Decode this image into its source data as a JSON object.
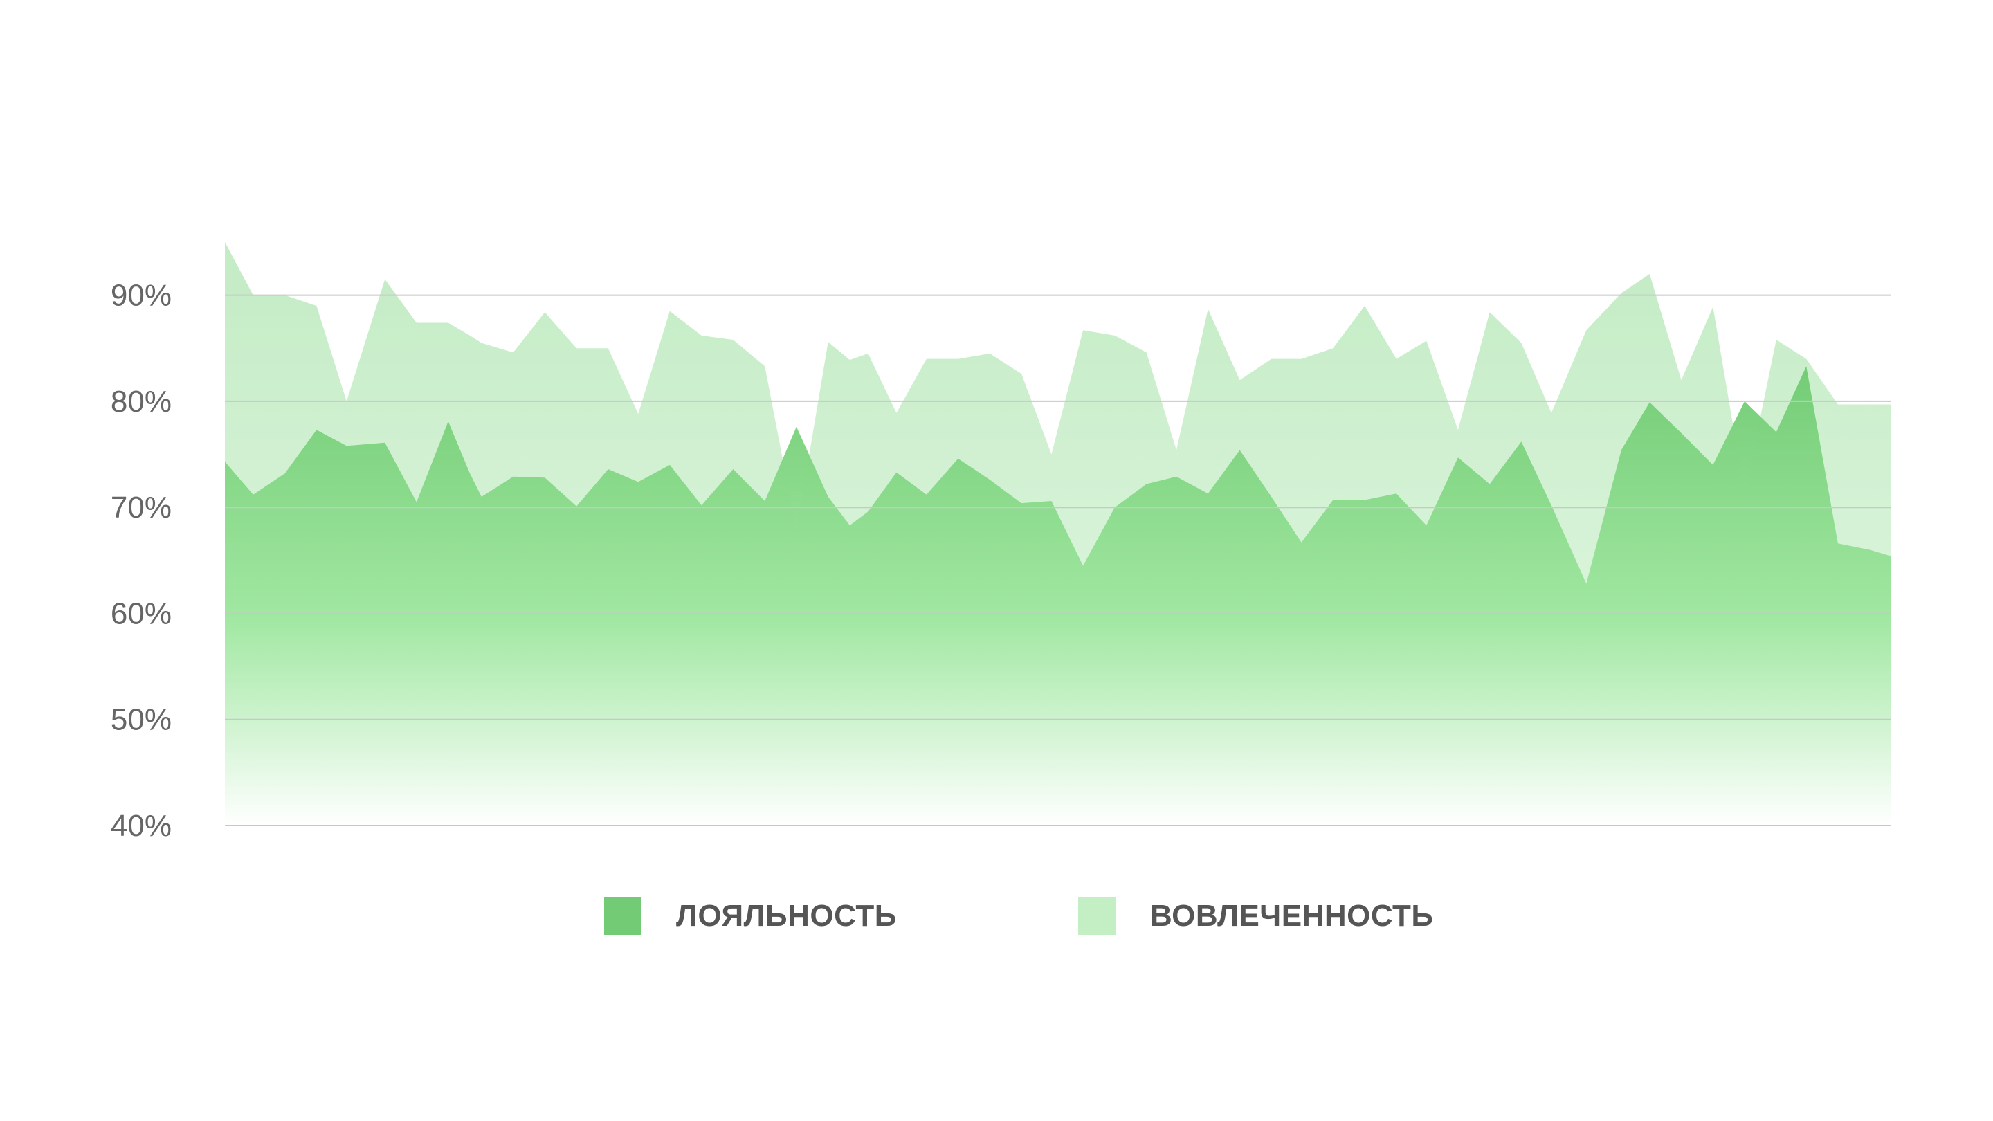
{
  "chart_data": {
    "type": "area",
    "title": "",
    "xlabel": "",
    "ylabel": "",
    "ylim": [
      40,
      95
    ],
    "yticks": [
      "40%",
      "50%",
      "60%",
      "70%",
      "80%",
      "90%"
    ],
    "ytick_values": [
      40,
      50,
      60,
      70,
      80,
      90
    ],
    "grid": true,
    "legend_position": "bottom-center",
    "x": [
      0,
      1.7,
      3.6,
      5.5,
      7.3,
      9.6,
      11.5,
      13.4,
      14.7,
      15.4,
      17.3,
      19.2,
      21.1,
      23.0,
      24.8,
      26.7,
      28.6,
      30.5,
      32.4,
      34.3,
      36.2,
      37.5,
      38.6,
      40.3,
      42.1,
      44.0,
      45.9,
      47.8,
      49.6,
      51.5,
      53.4,
      55.3,
      57.1,
      59.0,
      60.9,
      62.8,
      64.6,
      66.5,
      68.4,
      70.3,
      72.1,
      74.0,
      75.9,
      77.8,
      79.6,
      81.7,
      83.8,
      85.5,
      87.4,
      89.3,
      91.2,
      93.1,
      94.9,
      96.8,
      98.7,
      100
    ],
    "series": [
      {
        "name": "ЛОЯЛЬНОСТЬ",
        "color": "#73cc75",
        "values": [
          74.3,
          71.2,
          73.2,
          77.3,
          75.8,
          76.1,
          70.5,
          78.1,
          73.2,
          71.0,
          72.9,
          72.8,
          70.1,
          73.6,
          72.4,
          74.0,
          70.2,
          73.6,
          70.6,
          77.6,
          71.0,
          68.3,
          69.6,
          73.3,
          71.2,
          74.6,
          72.6,
          70.4,
          70.6,
          64.5,
          70.0,
          72.2,
          72.9,
          71.3,
          75.4,
          71.0,
          66.7,
          70.7,
          70.7,
          71.3,
          68.3,
          74.7,
          72.2,
          76.2,
          70.2,
          62.8,
          75.4,
          79.9,
          77.0,
          74.0,
          80.0,
          77.1,
          83.3,
          66.6,
          66.0,
          65.4
        ],
        "fill_gradient": [
          "#73cc75",
          "#ffffff"
        ]
      },
      {
        "name": "ВОВЛЕЧЕННОСТЬ",
        "color": "#c4efc5",
        "values": [
          95.0,
          90.0,
          90.0,
          89.0,
          80.0,
          91.5,
          87.4,
          87.4,
          86.2,
          85.5,
          84.6,
          88.4,
          85.0,
          85.0,
          78.8,
          88.5,
          86.2,
          85.8,
          83.3,
          67.8,
          85.6,
          83.9,
          84.5,
          78.9,
          84.0,
          84.0,
          84.5,
          82.6,
          75.0,
          86.7,
          86.2,
          84.6,
          75.4,
          88.7,
          82.0,
          84.0,
          84.0,
          85.0,
          89.0,
          84.0,
          85.7,
          77.3,
          88.4,
          85.5,
          78.9,
          86.7,
          90.2,
          92.0,
          82.0,
          88.9,
          71.3,
          85.8,
          84.0,
          79.7,
          79.7,
          79.7
        ],
        "fill_gradient": [
          "#a9e3ab",
          "#dff7df"
        ]
      }
    ]
  },
  "colors": {
    "grid": "#c8c8c8",
    "axis_text": "#666666",
    "legend_text": "#555555"
  }
}
